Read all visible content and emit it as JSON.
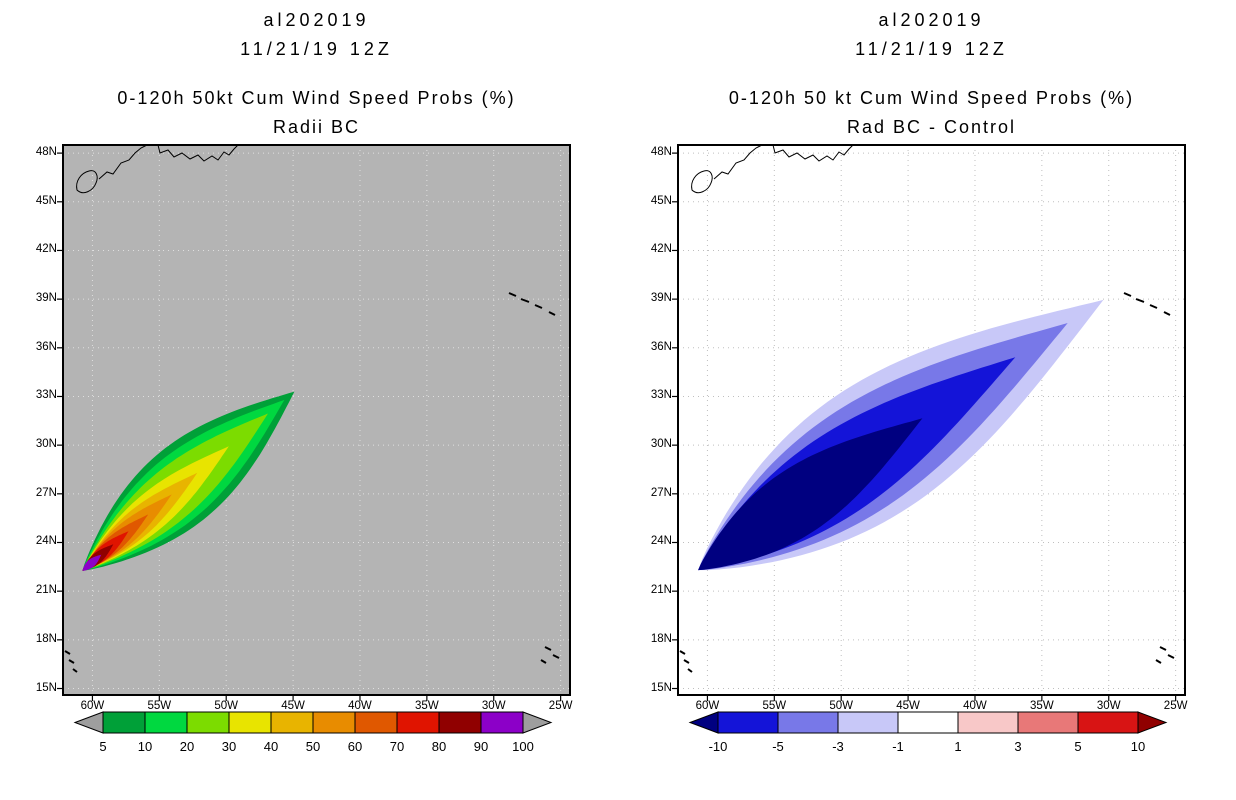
{
  "figure_background": "#ffffff",
  "chart_data": [
    {
      "type": "heatmap",
      "subtype": "filled-contour-probability-map",
      "title": "al202019",
      "subtitle": "11/21/19 12Z",
      "heading1": "0-120h 50kt Cum Wind Speed Probs (%)",
      "heading2": "Radii BC",
      "map_background": "#b4b4b4",
      "grid": {
        "show": true,
        "color": "#e0e0e0"
      },
      "axes": {
        "lon_ticks_deg_w": [
          60,
          55,
          50,
          45,
          40,
          35,
          30,
          25
        ],
        "lon_tick_labels": [
          "60W",
          "55W",
          "50W",
          "45W",
          "40W",
          "35W",
          "30W",
          "25W"
        ],
        "lat_ticks_deg_n": [
          15,
          18,
          21,
          24,
          27,
          30,
          33,
          36,
          39,
          42,
          45,
          48
        ],
        "lat_tick_labels": [
          "15N",
          "18N",
          "21N",
          "24N",
          "27N",
          "30N",
          "33N",
          "36N",
          "39N",
          "42N",
          "45N",
          "48N"
        ],
        "lon_range_deg_w": [
          62.2,
          24.3
        ],
        "lat_range_deg_n": [
          14.6,
          48.5
        ]
      },
      "colorbar": {
        "tick_labels": [
          "5",
          "10",
          "20",
          "30",
          "40",
          "50",
          "60",
          "70",
          "80",
          "90",
          "100"
        ],
        "box_colors": [
          "#00A038",
          "#00D840",
          "#7CDC00",
          "#E8E400",
          "#E8B400",
          "#E88C00",
          "#E05800",
          "#E01400",
          "#900000",
          "#8C00C8"
        ],
        "under_arrow_color": "#9e9e9e",
        "over_arrow_color": "#9e9e9e"
      },
      "swath": {
        "description": "cumulative 50kt wind speed probability swath, SW tip near 60.7W/22.3N extending NE to about 45W/33.4N",
        "centerline_lon_lat": [
          [
            60.75,
            22.25
          ],
          [
            52.45,
            28.15
          ],
          [
            44.9,
            33.3
          ]
        ],
        "contours": [
          {
            "level": 5,
            "extent": 1.0,
            "half_width_deg": 2.45,
            "color": "#00A038"
          },
          {
            "level": 10,
            "extent": 0.95,
            "half_width_deg": 2.02,
            "color": "#00D840"
          },
          {
            "level": 20,
            "extent": 0.87,
            "half_width_deg": 1.6,
            "color": "#7CDC00"
          },
          {
            "level": 30,
            "extent": 0.68,
            "half_width_deg": 1.16,
            "color": "#E8E400"
          },
          {
            "level": 40,
            "extent": 0.53,
            "half_width_deg": 0.87,
            "color": "#E8B400"
          },
          {
            "level": 50,
            "extent": 0.41,
            "half_width_deg": 0.67,
            "color": "#E88C00"
          },
          {
            "level": 60,
            "extent": 0.3,
            "half_width_deg": 0.51,
            "color": "#E05800"
          },
          {
            "level": 70,
            "extent": 0.21,
            "half_width_deg": 0.41,
            "color": "#E01400"
          },
          {
            "level": 80,
            "extent": 0.14,
            "half_width_deg": 0.33,
            "color": "#900000"
          },
          {
            "level": 90,
            "extent": 0.085,
            "half_width_deg": 0.25,
            "color": "#8C00C8"
          }
        ]
      }
    },
    {
      "type": "heatmap",
      "subtype": "filled-contour-difference-map",
      "title": "al202019",
      "subtitle": "11/21/19 12Z",
      "heading1": "0-120h 50 kt Cum Wind Speed Probs (%)",
      "heading2": "Rad BC - Control",
      "map_background": "#ffffff",
      "grid": {
        "show": true,
        "color": "#bfbfbf"
      },
      "axes": {
        "lon_ticks_deg_w": [
          60,
          55,
          50,
          45,
          40,
          35,
          30,
          25
        ],
        "lon_tick_labels": [
          "60W",
          "55W",
          "50W",
          "45W",
          "40W",
          "35W",
          "30W",
          "25W"
        ],
        "lat_ticks_deg_n": [
          15,
          18,
          21,
          24,
          27,
          30,
          33,
          36,
          39,
          42,
          45,
          48
        ],
        "lat_tick_labels": [
          "15N",
          "18N",
          "21N",
          "24N",
          "27N",
          "30N",
          "33N",
          "36N",
          "39N",
          "42N",
          "45N",
          "48N"
        ],
        "lon_range_deg_w": [
          62.2,
          24.3
        ],
        "lat_range_deg_n": [
          14.6,
          48.5
        ]
      },
      "colorbar": {
        "tick_labels": [
          "-10",
          "-5",
          "-3",
          "-1",
          "1",
          "3",
          "5",
          "10"
        ],
        "box_colors": [
          "#1414D8",
          "#7878E8",
          "#C8C8F8",
          "#FFFFFF",
          "#F8C8C8",
          "#E87878",
          "#D81414"
        ],
        "under_arrow_color": "#000080",
        "over_arrow_color": "#900000"
      },
      "swath": {
        "description": "probability difference (Radii BC minus Control), all negative, SW tip near 60.7W/22.3N extending NE to about 30.4W/39N",
        "centerline_lon_lat": [
          [
            60.7,
            22.3
          ],
          [
            47.2,
            30.0
          ],
          [
            30.4,
            38.95
          ]
        ],
        "contours": [
          {
            "level": -1,
            "extent": 1.0,
            "half_width_deg": 4.1,
            "color": "#C8C8F8"
          },
          {
            "level": -3,
            "extent": 0.92,
            "half_width_deg": 3.3,
            "color": "#7878E8"
          },
          {
            "level": -5,
            "extent": 0.8,
            "half_width_deg": 2.55,
            "color": "#1414D8"
          },
          {
            "level": -10,
            "extent": 0.58,
            "half_width_deg": 2.05,
            "color": "#000080"
          }
        ]
      }
    }
  ]
}
